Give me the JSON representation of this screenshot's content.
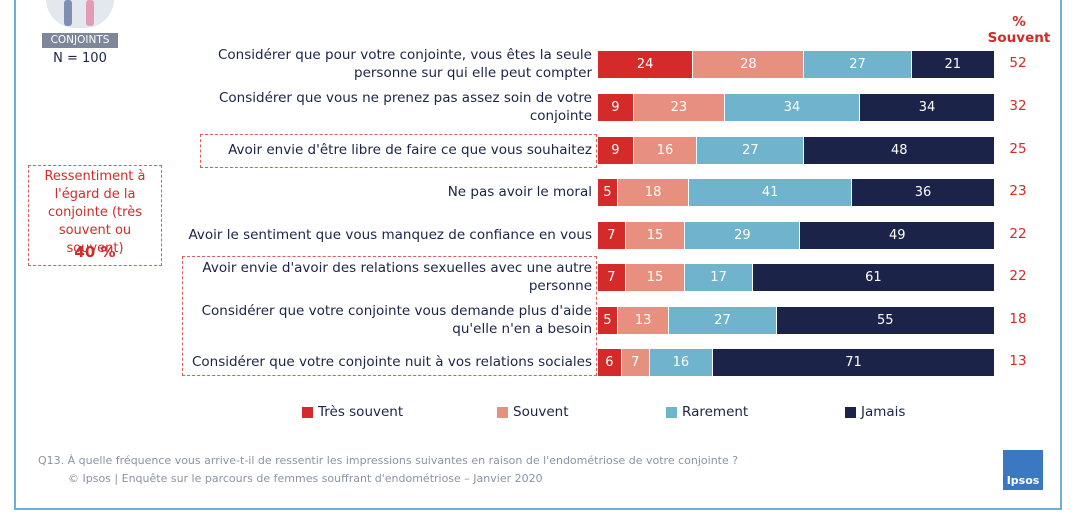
{
  "chart_data": {
    "type": "bar",
    "orientation": "horizontal",
    "stacked": true,
    "subgroup_label": "CONJOINTS",
    "sample": "N = 100",
    "categories": [
      "Considérer que pour votre conjointe, vous êtes la seule personne sur qui elle peut compter",
      "Considérer que vous ne prenez pas assez soin de votre conjointe",
      "Avoir envie d'être libre de faire ce que vous souhaitez",
      "Ne pas avoir le moral",
      "Avoir le sentiment que vous manquez de confiance en vous",
      "Avoir envie d'avoir des relations sexuelles avec une autre personne",
      "Considérer que votre conjointe vous demande plus d'aide qu'elle n'en a besoin",
      "Considérer que votre conjointe nuit à vos relations sociales"
    ],
    "xlim": [
      0,
      100
    ],
    "series": [
      {
        "name": "Très souvent",
        "color": "#d42a2a",
        "values": [
          24,
          9,
          9,
          5,
          7,
          7,
          5,
          6
        ]
      },
      {
        "name": "Souvent",
        "color": "#e8907f",
        "values": [
          28,
          23,
          16,
          18,
          15,
          15,
          13,
          7
        ]
      },
      {
        "name": "Rarement",
        "color": "#6fb3cc",
        "values": [
          27,
          34,
          27,
          41,
          29,
          17,
          27,
          16
        ]
      },
      {
        "name": "Jamais",
        "color": "#1b2448",
        "values": [
          21,
          34,
          48,
          36,
          49,
          61,
          55,
          71
        ]
      }
    ],
    "summary": {
      "title": "% Souvent",
      "values": [
        52,
        32,
        25,
        23,
        22,
        22,
        18,
        13
      ]
    },
    "annotation": {
      "text": "Ressentiment à l'égard de la conjointe (très souvent ou souvent)",
      "value": 40,
      "value_label": "40 %"
    },
    "question": "Q13. À quelle fréquence vous arrive-t-il de ressentir les impressions suivantes en raison de l'endométriose de votre conjointe ?",
    "source": "© Ipsos | Enquête sur le parcours de femmes souffrant d'endométriose – Janvier 2020",
    "logo": "Ipsos"
  }
}
